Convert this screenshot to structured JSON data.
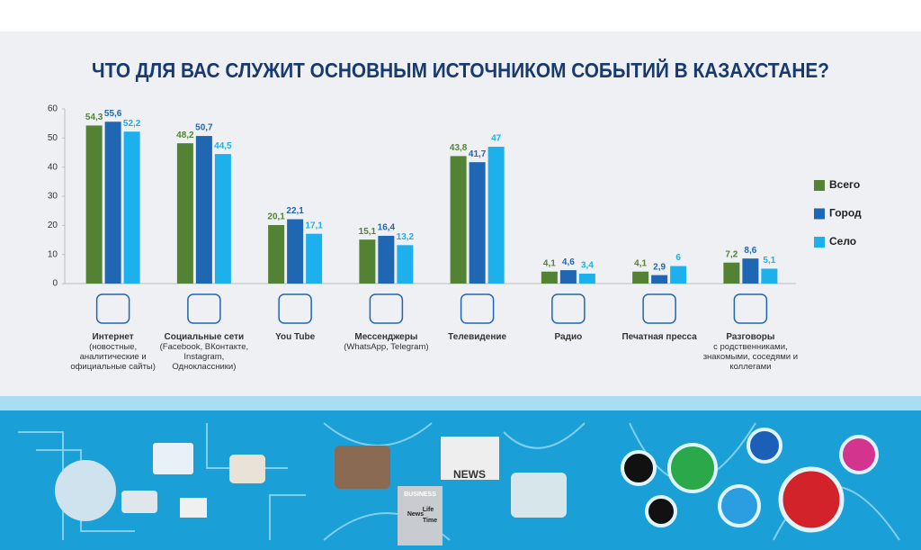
{
  "chart_data": {
    "type": "bar",
    "title": "ЧТО ДЛЯ ВАС СЛУЖИТ ОСНОВНЫМ ИСТОЧНИКОМ СОБЫТИЙ В КАЗАХСТАНЕ?",
    "categories": [
      "Интернет",
      "Социальные сети",
      "You Tube",
      "Мессенджеры",
      "Телевидение",
      "Радио",
      "Печатная пресса",
      "Разговоры"
    ],
    "category_details": [
      "(новостные, аналитические и официальные сайты)",
      "(Facebook, ВКонтакте, Instagram, Одноклассники)",
      null,
      "(WhatsApp, Telegram)",
      null,
      null,
      null,
      "с родственниками, знакомыми, соседями и коллегами"
    ],
    "series": [
      {
        "name": "Всего",
        "color": "#548235",
        "values": [
          54.3,
          48.2,
          20.1,
          15.1,
          43.8,
          4.1,
          4.1,
          7.2
        ],
        "value_labels": [
          "54,3",
          "48,2",
          "20,1",
          "15,1",
          "43,8",
          "4,1",
          "4,1",
          "7,2"
        ]
      },
      {
        "name": "Город",
        "color": "#1f66b3",
        "values": [
          55.6,
          50.7,
          22.1,
          16.4,
          41.7,
          4.6,
          2.9,
          8.6
        ],
        "value_labels": [
          "55,6",
          "50,7",
          "22,1",
          "16,4",
          "41,7",
          "4,6",
          "2,9",
          "8,6"
        ]
      },
      {
        "name": "Село",
        "color": "#1cb0ec",
        "values": [
          52.2,
          44.5,
          17.1,
          13.2,
          47,
          3.4,
          6,
          5.1
        ],
        "value_labels": [
          "52,2",
          "44,5",
          "17,1",
          "13,2",
          "47",
          "3,4",
          "6",
          "5,1"
        ]
      }
    ],
    "ylim": [
      0,
      60
    ],
    "yticks": [
      0,
      10,
      20,
      30,
      40,
      50,
      60
    ],
    "grid": false,
    "legend": "right"
  },
  "illustration": {
    "texts": [
      "NEWS",
      "BUSINESS",
      "News",
      "Life",
      "Time"
    ]
  }
}
